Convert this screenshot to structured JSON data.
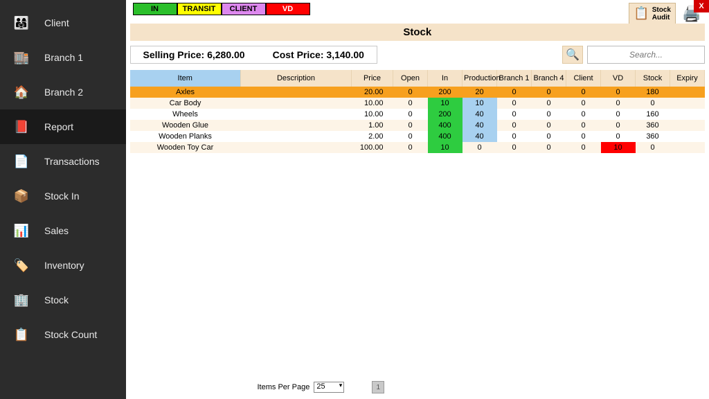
{
  "sidebar": {
    "items": [
      {
        "label": "Client",
        "icon": "👨‍👩‍👧"
      },
      {
        "label": "Branch 1",
        "icon": "🏬"
      },
      {
        "label": "Branch 2",
        "icon": "🏠"
      },
      {
        "label": "Report",
        "icon": "📕"
      },
      {
        "label": "Transactions",
        "icon": "📄"
      },
      {
        "label": "Stock In",
        "icon": "📦"
      },
      {
        "label": "Sales",
        "icon": "📊"
      },
      {
        "label": "Inventory",
        "icon": "🏷️"
      },
      {
        "label": "Stock",
        "icon": "🏢"
      },
      {
        "label": "Stock Count",
        "icon": "📋"
      }
    ],
    "active_index": 3
  },
  "status_badges": [
    {
      "label": "IN",
      "bg": "#2bbf2b",
      "fg": "#000000"
    },
    {
      "label": "TRANSIT",
      "bg": "#ffff00",
      "fg": "#000000"
    },
    {
      "label": "CLIENT",
      "bg": "#dd88ee",
      "fg": "#000000"
    },
    {
      "label": "VD",
      "bg": "#ff0000",
      "fg": "#ffffff"
    }
  ],
  "header": {
    "stock_audit_label": "Stock\nAudit",
    "close_label": "X",
    "page_title": "Stock"
  },
  "prices": {
    "selling_label": "Selling Price:",
    "selling_value": "6,280.00",
    "cost_label": "Cost Price:",
    "cost_value": "3,140.00"
  },
  "search": {
    "placeholder": "Search..."
  },
  "table": {
    "columns": [
      "Item",
      "Description",
      "Price",
      "Open",
      "In",
      "Production",
      "Branch 1",
      "Branch 4",
      "Client",
      "VD",
      "Stock",
      "Expiry"
    ],
    "selected_index": 0,
    "rows": [
      {
        "item": "Axles",
        "description": "",
        "price": "20.00",
        "open": "0",
        "in": "200",
        "production": "20",
        "branch1": "0",
        "branch4": "0",
        "client": "0",
        "vd": "0",
        "stock": "180",
        "expiry": "",
        "in_green": true,
        "prod_blue": true,
        "vd_red": false
      },
      {
        "item": "Car Body",
        "description": "",
        "price": "10.00",
        "open": "0",
        "in": "10",
        "production": "10",
        "branch1": "0",
        "branch4": "0",
        "client": "0",
        "vd": "0",
        "stock": "0",
        "expiry": "",
        "in_green": true,
        "prod_blue": true,
        "vd_red": false
      },
      {
        "item": "Wheels",
        "description": "",
        "price": "10.00",
        "open": "0",
        "in": "200",
        "production": "40",
        "branch1": "0",
        "branch4": "0",
        "client": "0",
        "vd": "0",
        "stock": "160",
        "expiry": "",
        "in_green": true,
        "prod_blue": true,
        "vd_red": false
      },
      {
        "item": "Wooden Glue",
        "description": "",
        "price": "1.00",
        "open": "0",
        "in": "400",
        "production": "40",
        "branch1": "0",
        "branch4": "0",
        "client": "0",
        "vd": "0",
        "stock": "360",
        "expiry": "",
        "in_green": true,
        "prod_blue": true,
        "vd_red": false
      },
      {
        "item": "Wooden Planks",
        "description": "",
        "price": "2.00",
        "open": "0",
        "in": "400",
        "production": "40",
        "branch1": "0",
        "branch4": "0",
        "client": "0",
        "vd": "0",
        "stock": "360",
        "expiry": "",
        "in_green": true,
        "prod_blue": true,
        "vd_red": false
      },
      {
        "item": "Wooden Toy Car",
        "description": "",
        "price": "100.00",
        "open": "0",
        "in": "10",
        "production": "0",
        "branch1": "0",
        "branch4": "0",
        "client": "0",
        "vd": "10",
        "stock": "0",
        "expiry": "",
        "in_green": true,
        "prod_blue": false,
        "vd_red": true
      }
    ]
  },
  "footer": {
    "items_per_page_label": "Items Per Page",
    "items_per_page_value": "25",
    "page": "1"
  },
  "colors": {
    "sidebar_bg": "#2c2c2c",
    "header_cream": "#f5e3c9",
    "item_header_blue": "#a8d1f0",
    "row_selected": "#f7a01e",
    "row_even": "#fdf4e7",
    "cell_green": "#2ecc40",
    "cell_blue": "#a8d1f0",
    "cell_red": "#ff0000"
  }
}
